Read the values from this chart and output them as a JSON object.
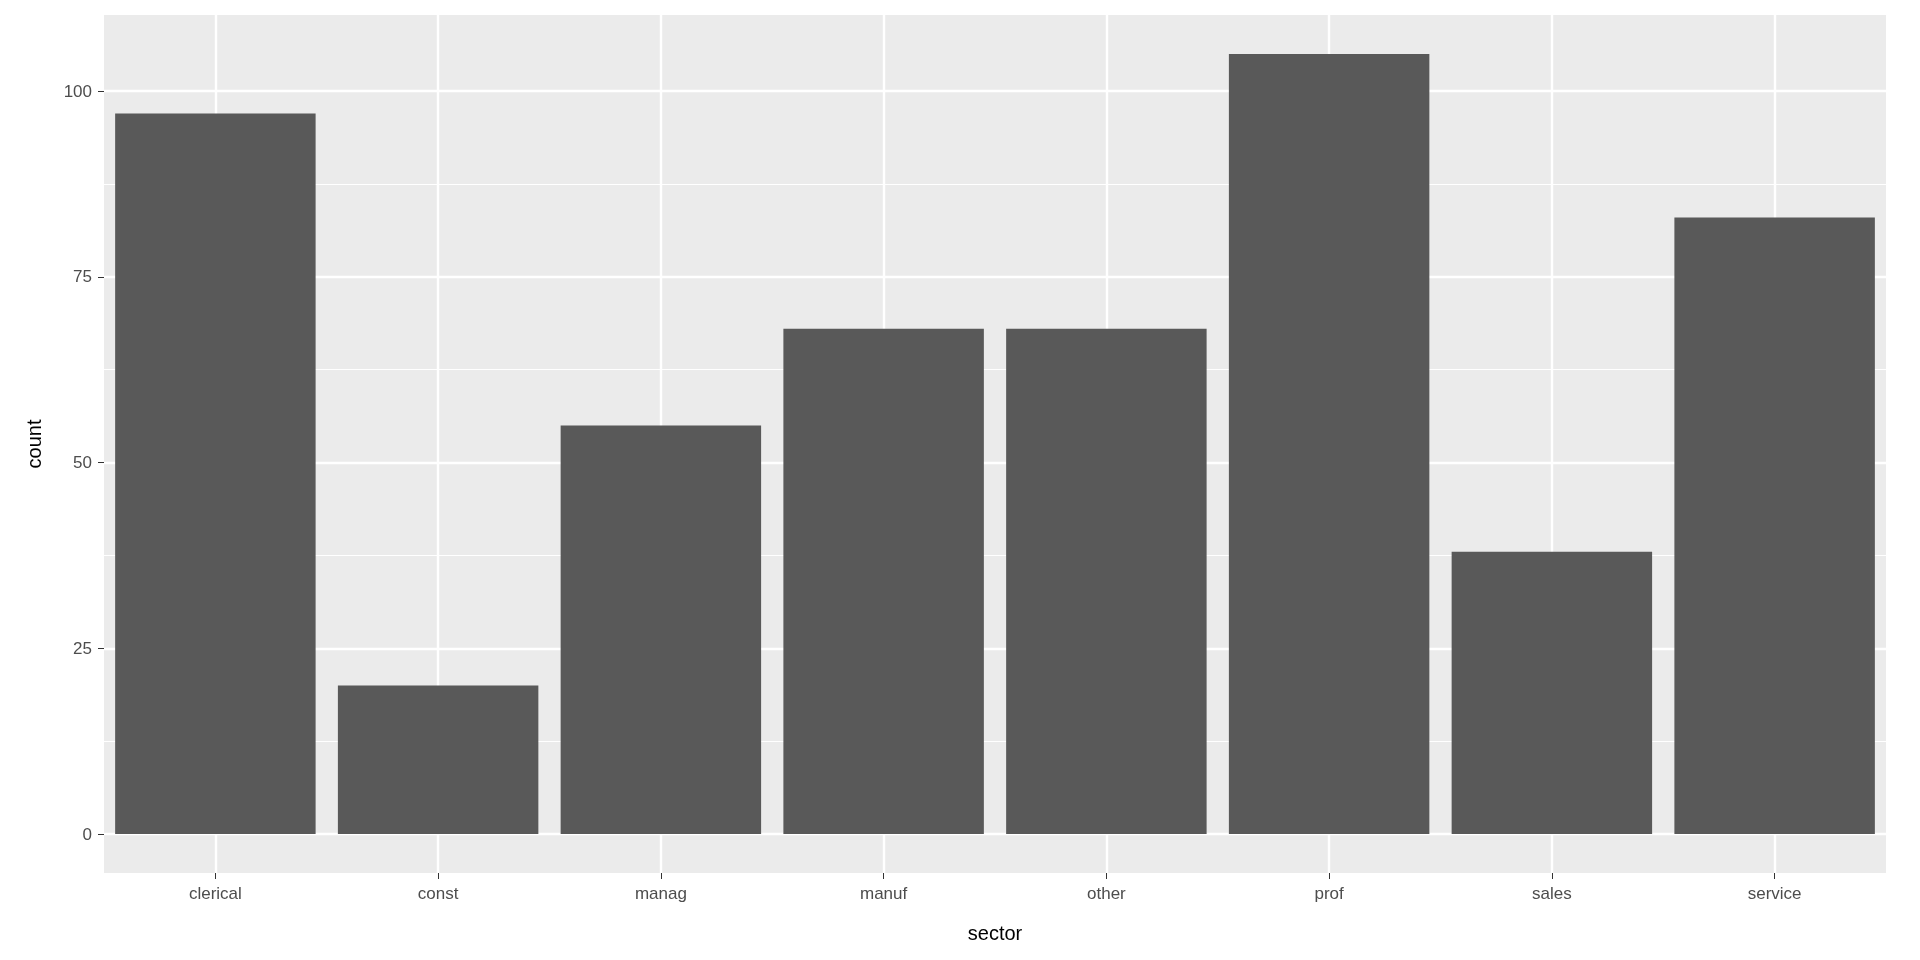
{
  "chart_data": {
    "type": "bar",
    "xlabel": "sector",
    "ylabel": "count",
    "categories": [
      "clerical",
      "const",
      "manag",
      "manuf",
      "other",
      "prof",
      "sales",
      "service"
    ],
    "values": [
      97,
      20,
      55,
      68,
      68,
      105,
      38,
      83
    ],
    "color": "#595959",
    "ylim": [
      -5.25,
      110.25
    ],
    "yticks": [
      0,
      25,
      50,
      75,
      100
    ],
    "grid": true
  }
}
